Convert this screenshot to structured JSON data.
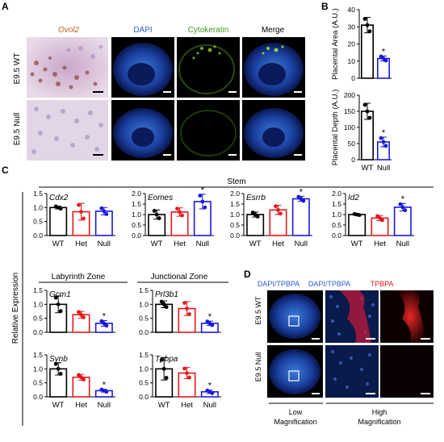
{
  "panel_letters": {
    "a": "A",
    "b": "B",
    "c": "C",
    "d": "D"
  },
  "panel_a": {
    "headers": [
      "Ovol2",
      "DAPI",
      "Cytokeratin",
      "Merge"
    ],
    "rows": [
      "E9.5 WT",
      "E9.5 Null"
    ]
  },
  "panel_d": {
    "headers": [
      "DAPI/TPBPA",
      "DAPI/TPBPA",
      "TPBPA"
    ],
    "rows": [
      "E9.5 WT",
      "E9.5 Null"
    ],
    "footer_low": [
      "Low",
      "Magnification"
    ],
    "footer_high": [
      "High",
      "Magnification"
    ]
  },
  "panel_c": {
    "group_stem": "Stem",
    "group_labyrinth": "Labyrinth Zone",
    "group_junctional": "Junctional Zone",
    "ylabel": "Relative Expression"
  },
  "colors": {
    "WT": "#000000",
    "Het": "#e3191b",
    "Null": "#1a1adb"
  },
  "chart_data": [
    {
      "type": "bar",
      "title": "Cdx2",
      "categories": [
        "WT",
        "Het",
        "Null"
      ],
      "values": [
        1.0,
        0.85,
        0.87
      ],
      "errors": [
        0.05,
        0.3,
        0.13
      ],
      "significant": [
        false,
        false,
        false
      ],
      "ylim": [
        0,
        1.5
      ],
      "yticks": [
        "0.0",
        "0.5",
        "1.0",
        "1.5"
      ]
    },
    {
      "type": "bar",
      "title": "Eomes",
      "categories": [
        "WT",
        "Het",
        "Null"
      ],
      "values": [
        1.0,
        1.12,
        1.62
      ],
      "errors": [
        0.22,
        0.2,
        0.35
      ],
      "significant": [
        false,
        false,
        true
      ],
      "ylim": [
        0,
        2.0
      ],
      "yticks": [
        "0.0",
        "0.5",
        "1.0",
        "1.5",
        "2.0"
      ]
    },
    {
      "type": "bar",
      "title": "Esrrb",
      "categories": [
        "WT",
        "Het",
        "Null"
      ],
      "values": [
        1.0,
        1.22,
        1.75
      ],
      "errors": [
        0.12,
        0.22,
        0.12
      ],
      "significant": [
        false,
        false,
        true
      ],
      "ylim": [
        0,
        2.0
      ],
      "yticks": [
        "0.0",
        "0.5",
        "1.0",
        "1.5",
        "2.0"
      ]
    },
    {
      "type": "bar",
      "title": "Id2",
      "categories": [
        "WT",
        "Het",
        "Null"
      ],
      "values": [
        1.0,
        0.83,
        1.35
      ],
      "errors": [
        0.03,
        0.12,
        0.18
      ],
      "significant": [
        false,
        false,
        true
      ],
      "ylim": [
        0,
        2.0
      ],
      "yticks": [
        "0.0",
        "0.5",
        "1.0",
        "1.5",
        "2.0"
      ]
    },
    {
      "type": "bar",
      "title": "Gcm1",
      "categories": [
        "WT",
        "Het",
        "Null"
      ],
      "values": [
        1.0,
        0.63,
        0.32
      ],
      "errors": [
        0.3,
        0.12,
        0.1
      ],
      "significant": [
        false,
        false,
        true
      ],
      "ylim": [
        0,
        1.5
      ],
      "yticks": [
        "0.0",
        "0.5",
        "1.0",
        "1.5"
      ]
    },
    {
      "type": "bar",
      "title": "Prl3b1",
      "categories": [
        "WT",
        "Het",
        "Null"
      ],
      "values": [
        1.0,
        0.85,
        0.32
      ],
      "errors": [
        0.12,
        0.25,
        0.08
      ],
      "significant": [
        false,
        false,
        true
      ],
      "ylim": [
        0,
        1.5
      ],
      "yticks": [
        "0.0",
        "0.5",
        "1.0",
        "1.5"
      ]
    },
    {
      "type": "bar",
      "title": "Synb",
      "categories": [
        "WT",
        "Het",
        "Null"
      ],
      "values": [
        1.0,
        0.7,
        0.22
      ],
      "errors": [
        0.22,
        0.1,
        0.05
      ],
      "significant": [
        false,
        false,
        true
      ],
      "ylim": [
        0,
        1.5
      ],
      "yticks": [
        "0.0",
        "0.5",
        "1.0",
        "1.5"
      ]
    },
    {
      "type": "bar",
      "title": "Tpbpa",
      "categories": [
        "WT",
        "Het",
        "Null"
      ],
      "values": [
        1.0,
        0.85,
        0.18
      ],
      "errors": [
        0.4,
        0.2,
        0.06
      ],
      "significant": [
        false,
        false,
        true
      ],
      "ylim": [
        0,
        1.5
      ],
      "yticks": [
        "0.0",
        "0.5",
        "1.0",
        "1.5"
      ]
    },
    {
      "type": "bar",
      "ylabel": "Placental Area (A.U.)",
      "categories": [
        "WT",
        "Null"
      ],
      "values": [
        31,
        11.5
      ],
      "errors": [
        4.5,
        1.5
      ],
      "significant": [
        false,
        true
      ],
      "ylim": [
        0,
        40
      ],
      "yticks": [
        "0",
        "10",
        "20",
        "30",
        "40"
      ]
    },
    {
      "type": "bar",
      "ylabel": "Placental Depth (A.U.)",
      "categories": [
        "WT",
        "Null"
      ],
      "values": [
        150,
        55
      ],
      "errors": [
        25,
        15
      ],
      "significant": [
        false,
        true
      ],
      "ylim": [
        0,
        200
      ],
      "yticks": [
        "0",
        "50",
        "100",
        "150",
        "200"
      ],
      "xticklabels": [
        "WT",
        "Null"
      ]
    }
  ]
}
